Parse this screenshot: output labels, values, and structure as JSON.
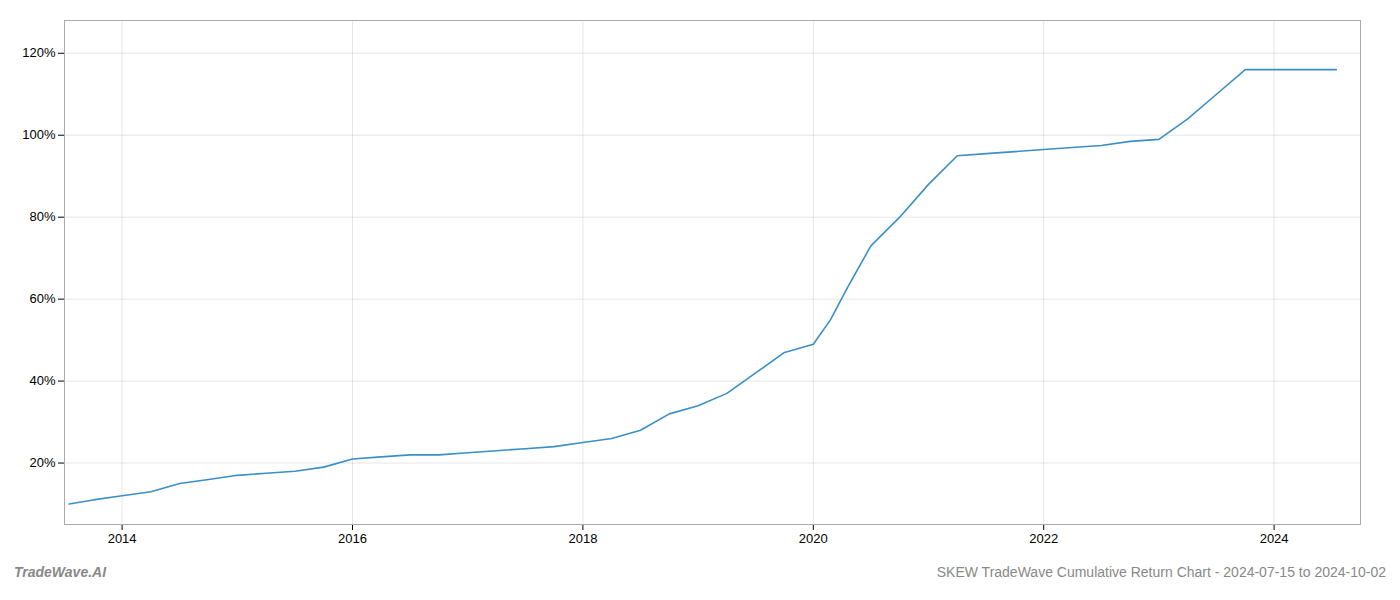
{
  "chart_data": {
    "type": "line",
    "title": "SKEW TradeWave Cumulative Return Chart - 2024-07-15 to 2024-10-02",
    "annotations": [
      "TradeWave.AI"
    ],
    "x": [
      2013.54,
      2013.75,
      2014.0,
      2014.25,
      2014.5,
      2014.75,
      2015.0,
      2015.25,
      2015.5,
      2015.75,
      2016.0,
      2016.25,
      2016.5,
      2016.75,
      2017.0,
      2017.25,
      2017.5,
      2017.75,
      2018.0,
      2018.25,
      2018.5,
      2018.75,
      2019.0,
      2019.25,
      2019.5,
      2019.75,
      2020.0,
      2020.15,
      2020.3,
      2020.5,
      2020.75,
      2021.0,
      2021.25,
      2021.5,
      2021.75,
      2022.0,
      2022.25,
      2022.5,
      2022.75,
      2023.0,
      2023.25,
      2023.5,
      2023.75,
      2024.0,
      2024.25,
      2024.54
    ],
    "values": [
      10,
      11,
      12,
      13,
      15,
      16,
      17,
      17.5,
      18,
      19,
      21,
      21.5,
      22,
      22,
      22.5,
      23,
      23.5,
      24,
      25,
      26,
      28,
      32,
      34,
      37,
      42,
      47,
      49,
      55,
      63,
      73,
      80,
      88,
      95,
      95.5,
      96,
      96.5,
      97,
      97.5,
      98.5,
      99,
      104,
      110,
      116,
      116,
      116,
      116
    ],
    "color": "#3a8fc7",
    "xlim": [
      2013.5,
      2024.75
    ],
    "xticks": [
      2014,
      2016,
      2018,
      2020,
      2022,
      2024
    ],
    "ylim": [
      5,
      128
    ],
    "yticks": [
      {
        "value": 20,
        "label": "20%"
      },
      {
        "value": 40,
        "label": "40%"
      },
      {
        "value": 60,
        "label": "60%"
      },
      {
        "value": 80,
        "label": "80%"
      },
      {
        "value": 100,
        "label": "100%"
      },
      {
        "value": 120,
        "label": "120%"
      }
    ],
    "grid": true
  }
}
